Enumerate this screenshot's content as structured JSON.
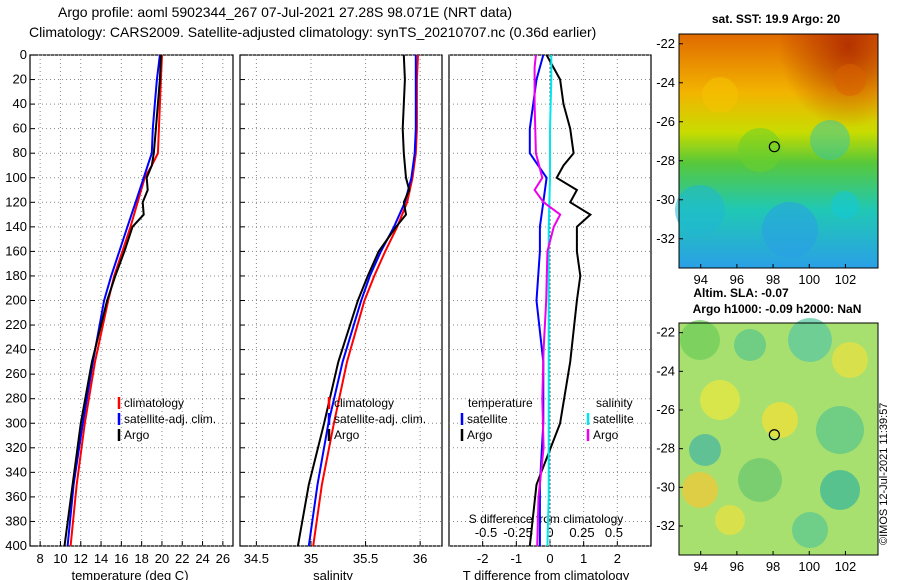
{
  "header": {
    "line1": "Argo profile: aoml 5902344_267 07-Jul-2021 27.28S 98.071E (NRT data)",
    "line2": "Climatology: CARS2009. Satellite-adjusted climatology: synTS_20210707.nc (0.36d earlier)"
  },
  "stamp": "©IMOS 12-Jul-2021 11:39:57",
  "colors": {
    "climatology": "#ff0000",
    "satellite": "#0000ff",
    "argo": "#000000",
    "sal_satellite": "#00e5ee",
    "sal_argo": "#ee00ee"
  },
  "chart_data": [
    {
      "type": "line",
      "title": "",
      "xlabel": "temperature (deg C)",
      "ylabel": "",
      "xlim": [
        7,
        27
      ],
      "ylim": [
        400,
        0
      ],
      "xticks": [
        8,
        10,
        12,
        14,
        16,
        18,
        20,
        22,
        24,
        26
      ],
      "yticks": [
        0,
        20,
        40,
        60,
        80,
        100,
        120,
        140,
        160,
        180,
        200,
        220,
        240,
        260,
        280,
        300,
        320,
        340,
        360,
        380,
        400
      ],
      "grid": true,
      "legend": [
        "climatology",
        "satellite-adj. clim.",
        "Argo"
      ],
      "series": [
        {
          "name": "climatology",
          "color": "red",
          "depth": [
            0,
            20,
            40,
            60,
            80,
            90,
            100,
            120,
            140,
            160,
            180,
            200,
            250,
            300,
            350,
            400
          ],
          "values": [
            20.0,
            19.9,
            19.8,
            19.7,
            19.6,
            19.0,
            18.3,
            17.6,
            16.9,
            16.1,
            15.3,
            14.7,
            13.4,
            12.4,
            11.6,
            11.0
          ]
        },
        {
          "name": "satellite-adj. clim.",
          "color": "blue",
          "depth": [
            0,
            20,
            40,
            60,
            80,
            90,
            100,
            120,
            140,
            160,
            180,
            200,
            250,
            300,
            350,
            400
          ],
          "values": [
            19.8,
            19.5,
            19.3,
            19.1,
            19.0,
            18.6,
            18.2,
            17.4,
            16.6,
            15.8,
            15.0,
            14.3,
            13.2,
            12.2,
            11.3,
            10.7
          ]
        },
        {
          "name": "Argo",
          "color": "black",
          "depth": [
            0,
            20,
            40,
            60,
            80,
            90,
            100,
            110,
            120,
            130,
            140,
            160,
            180,
            200,
            250,
            300,
            350,
            400
          ],
          "values": [
            19.9,
            19.8,
            19.6,
            19.4,
            19.2,
            19.0,
            18.5,
            18.6,
            18.1,
            18.2,
            17.1,
            16.3,
            15.4,
            14.6,
            13.1,
            12.0,
            11.2,
            10.4
          ]
        }
      ]
    },
    {
      "type": "line",
      "title": "",
      "xlabel": "salinity",
      "ylabel": "",
      "xlim": [
        34.35,
        36.2
      ],
      "ylim": [
        400,
        0
      ],
      "xticks": [
        34.5,
        35,
        35.5,
        36
      ],
      "xtick_labels": [
        "34.5",
        "35",
        "35.5",
        "36"
      ],
      "grid": true,
      "legend": [
        "climatology",
        "satellite-adj. clim.",
        "Argo"
      ],
      "series": [
        {
          "name": "climatology",
          "color": "red",
          "depth": [
            0,
            20,
            40,
            60,
            80,
            100,
            120,
            140,
            160,
            180,
            200,
            250,
            300,
            350,
            400
          ],
          "values": [
            35.98,
            35.97,
            35.97,
            35.97,
            35.96,
            35.93,
            35.88,
            35.79,
            35.68,
            35.58,
            35.49,
            35.33,
            35.21,
            35.1,
            35.02
          ]
        },
        {
          "name": "satellite-adj. clim.",
          "color": "blue",
          "depth": [
            0,
            20,
            40,
            60,
            80,
            100,
            120,
            140,
            160,
            180,
            200,
            250,
            300,
            350,
            400
          ],
          "values": [
            35.96,
            35.96,
            35.96,
            35.96,
            35.95,
            35.92,
            35.86,
            35.76,
            35.64,
            35.54,
            35.46,
            35.29,
            35.16,
            35.06,
            34.98
          ]
        },
        {
          "name": "Argo",
          "color": "black",
          "depth": [
            0,
            20,
            40,
            60,
            80,
            100,
            110,
            120,
            130,
            140,
            160,
            180,
            200,
            250,
            300,
            350,
            400
          ],
          "values": [
            35.85,
            35.86,
            35.85,
            35.84,
            35.85,
            35.87,
            35.9,
            35.85,
            35.87,
            35.78,
            35.62,
            35.52,
            35.43,
            35.25,
            35.12,
            34.98,
            34.88
          ]
        }
      ]
    },
    {
      "type": "line",
      "title": "",
      "xlabel": "T difference from climatology",
      "x2label": "S difference from climatology",
      "xlim": [
        -3,
        3
      ],
      "ylim": [
        400,
        0
      ],
      "xticks": [
        -2,
        -1,
        0,
        1,
        2
      ],
      "x2ticks": [
        -0.5,
        -0.25,
        0,
        0.25,
        0.5
      ],
      "x2tick_labels": [
        "-0.5",
        "-0.25",
        "0",
        "0.25",
        "0.5"
      ],
      "grid": true,
      "legend_left_title": "temperature",
      "legend_right_title": "salinity",
      "legend_left": [
        "satellite",
        "Argo"
      ],
      "legend_right": [
        "satellite",
        "Argo"
      ],
      "series": [
        {
          "name": "temperature satellite",
          "color": "blue",
          "depth": [
            0,
            20,
            40,
            60,
            80,
            100,
            120,
            140,
            160,
            200,
            250,
            300,
            350,
            400
          ],
          "values": [
            -0.2,
            -0.4,
            -0.5,
            -0.6,
            -0.6,
            -0.1,
            -0.2,
            -0.3,
            -0.3,
            -0.4,
            -0.2,
            -0.2,
            -0.3,
            -0.3
          ]
        },
        {
          "name": "temperature Argo",
          "color": "black",
          "depth": [
            0,
            20,
            40,
            60,
            80,
            90,
            100,
            110,
            120,
            130,
            140,
            160,
            180,
            200,
            250,
            300,
            350,
            400
          ],
          "values": [
            -0.1,
            0.3,
            0.4,
            0.6,
            0.7,
            0.4,
            0.2,
            0.8,
            0.6,
            1.2,
            0.8,
            0.8,
            0.9,
            0.8,
            0.6,
            0.3,
            -0.4,
            -0.6
          ]
        },
        {
          "name": "salinity satellite",
          "color": "cyan",
          "depth": [
            0,
            20,
            60,
            100,
            140,
            180,
            220,
            260,
            300,
            360,
            400
          ],
          "values": [
            0.01,
            0.01,
            0.0,
            0.0,
            -0.01,
            -0.01,
            -0.01,
            -0.01,
            -0.01,
            -0.01,
            -0.02
          ]
        },
        {
          "name": "salinity Argo",
          "color": "magenta",
          "depth": [
            0,
            10,
            40,
            80,
            100,
            110,
            120,
            130,
            140,
            160,
            200,
            240,
            280,
            320,
            360,
            400
          ],
          "values": [
            -0.11,
            -0.12,
            -0.12,
            -0.11,
            -0.06,
            -0.12,
            -0.05,
            0.08,
            0.03,
            -0.02,
            -0.03,
            -0.05,
            -0.06,
            -0.05,
            -0.09,
            -0.1
          ]
        }
      ]
    },
    {
      "type": "heatmap",
      "title": "sat. SST: 19.9 Argo: 20",
      "xlabel": "",
      "xticks": [
        94,
        96,
        98,
        100,
        102
      ],
      "yticks": [
        -22,
        -24,
        -26,
        -28,
        -30,
        -32
      ],
      "xlim": [
        92.8,
        103.8
      ],
      "ylim": [
        -33.5,
        -21.5
      ],
      "marker": {
        "lon": 98.07,
        "lat": -27.28
      }
    },
    {
      "type": "heatmap",
      "title_line1": "Altim. SLA: -0.07",
      "title_line2": "Argo h1000: -0.09 h2000: NaN",
      "xlabel": "",
      "xticks": [
        94,
        96,
        98,
        100,
        102
      ],
      "yticks": [
        -22,
        -24,
        -26,
        -28,
        -30,
        -32
      ],
      "xlim": [
        92.8,
        103.8
      ],
      "ylim": [
        -33.5,
        -21.5
      ],
      "marker": {
        "lon": 98.07,
        "lat": -27.28
      }
    }
  ]
}
